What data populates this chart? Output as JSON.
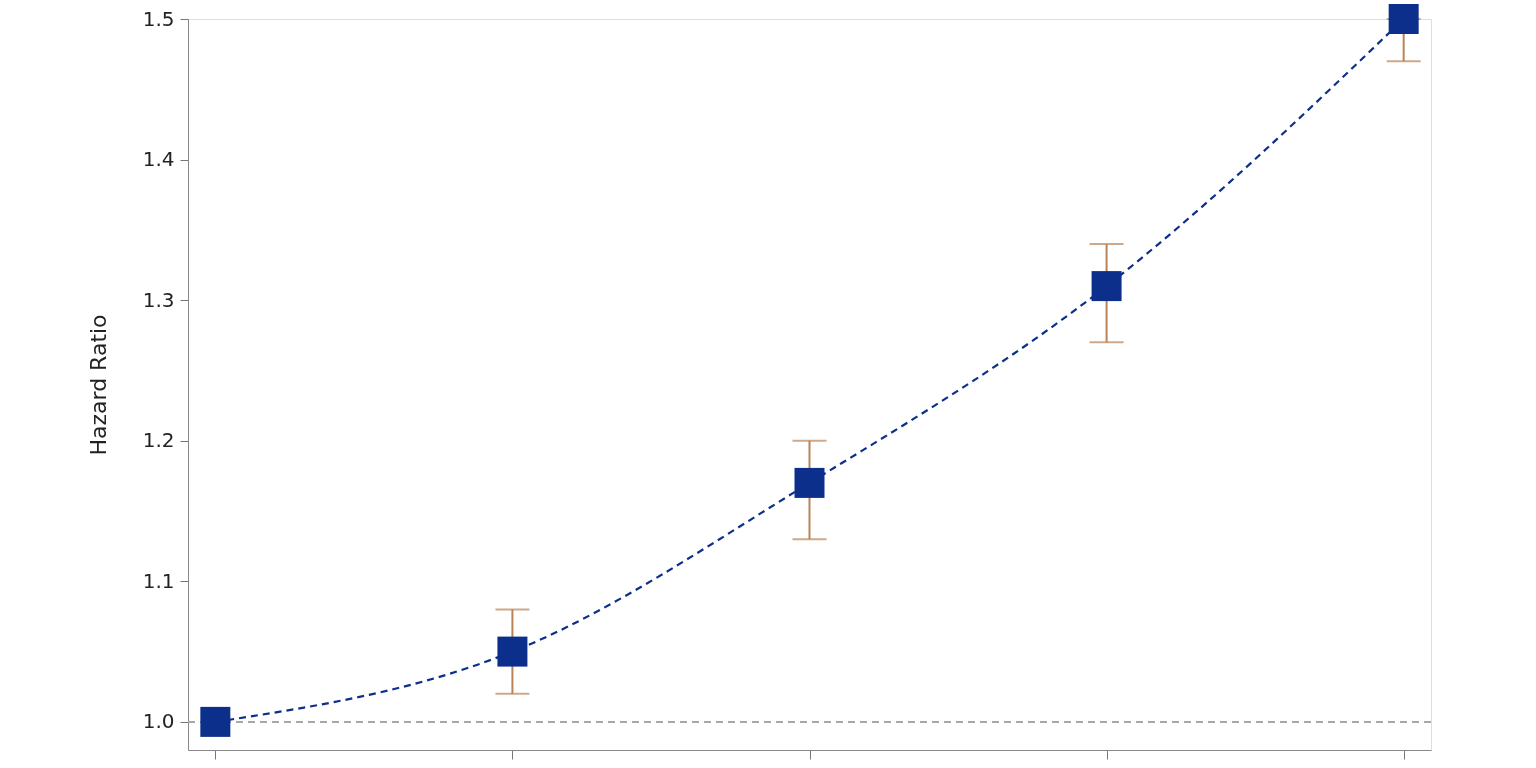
{
  "chart_data": {
    "type": "line",
    "ylabel": "Hazard Ratio",
    "categories": [
      null,
      null,
      null,
      null,
      null
    ],
    "series": [
      {
        "color": "#0d2f8c",
        "values": [
          1.0,
          1.05,
          1.17,
          1.31,
          1.5
        ],
        "errors": [
          null,
          [
            1.02,
            1.08
          ],
          [
            1.13,
            1.2
          ],
          [
            1.27,
            1.34
          ],
          [
            1.47,
            1.5
          ]
        ]
      }
    ],
    "ylim": [
      0.98,
      1.5
    ],
    "yticks": [
      {
        "value": 1,
        "label": "1.0"
      },
      1.1,
      1.2,
      1.3,
      1.4,
      1.5
    ],
    "ref_lines": [
      {
        "axis": "y",
        "value": 1.0,
        "color": "#a8a8a8",
        "line_style": "dashed"
      }
    ],
    "marker": "square",
    "line_style": "dashed",
    "tick_labels": "y"
  }
}
